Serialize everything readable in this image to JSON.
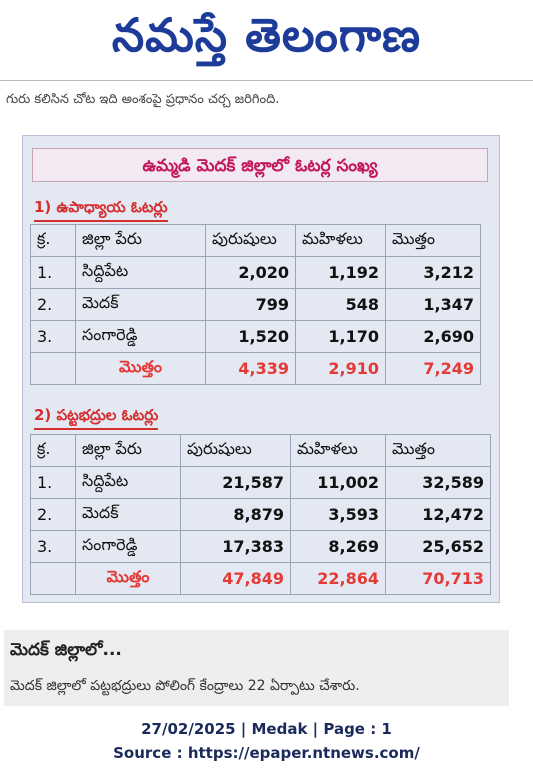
{
  "masthead": "నమస్తే తెలంగాణ",
  "cut_line": "గురు కలిసిన చోట ఇది అంశంపై ప్రధానం చర్చ జరిగింది.",
  "table": {
    "title": "ఉమ్మడి మెదక్ జిల్లాలో ఓటర్ల సంఖ్య",
    "sections": [
      {
        "heading": "1) ఉపాధ్యాయ ఓటర్లు",
        "columns": [
          "క్ర.",
          "జిల్లా పేరు",
          "పురుషులు",
          "మహిళలు",
          "మొత్తం"
        ],
        "rows": [
          [
            "1.",
            "సిద్దిపేట",
            "2,020",
            "1,192",
            "3,212"
          ],
          [
            "2.",
            "మెదక్",
            "799",
            "548",
            "1,347"
          ],
          [
            "3.",
            "సంగారెడ్డి",
            "1,520",
            "1,170",
            "2,690"
          ]
        ],
        "total": {
          "label": "మొత్తం",
          "values": [
            "4,339",
            "2,910",
            "7,249"
          ]
        }
      },
      {
        "heading": "2) పట్టభద్రుల ఓటర్లు",
        "columns": [
          "క్ర.",
          "జిల్లా పేరు",
          "పురుషులు",
          "మహిళలు",
          "మొత్తం"
        ],
        "rows": [
          [
            "1.",
            "సిద్దిపేట",
            "21,587",
            "11,002",
            "32,589"
          ],
          [
            "2.",
            "మెదక్",
            "8,879",
            "3,593",
            "12,472"
          ],
          [
            "3.",
            "సంగారెడ్డి",
            "17,383",
            "8,269",
            "25,652"
          ]
        ],
        "total": {
          "label": "మొత్తం",
          "values": [
            "47,849",
            "22,864",
            "70,713"
          ]
        }
      }
    ]
  },
  "box": {
    "heading": "మెదక్ జిల్లాలో...",
    "text": "మెదక్ జిల్లాలో పట్టభద్రులు పోలింగ్ కేంద్రాలు 22 ఏర్పాటు చేశారు."
  },
  "footer": {
    "date_line": "27/02/2025 | Medak | Page : 1",
    "source": "Source : https://epaper.ntnews.com/"
  }
}
